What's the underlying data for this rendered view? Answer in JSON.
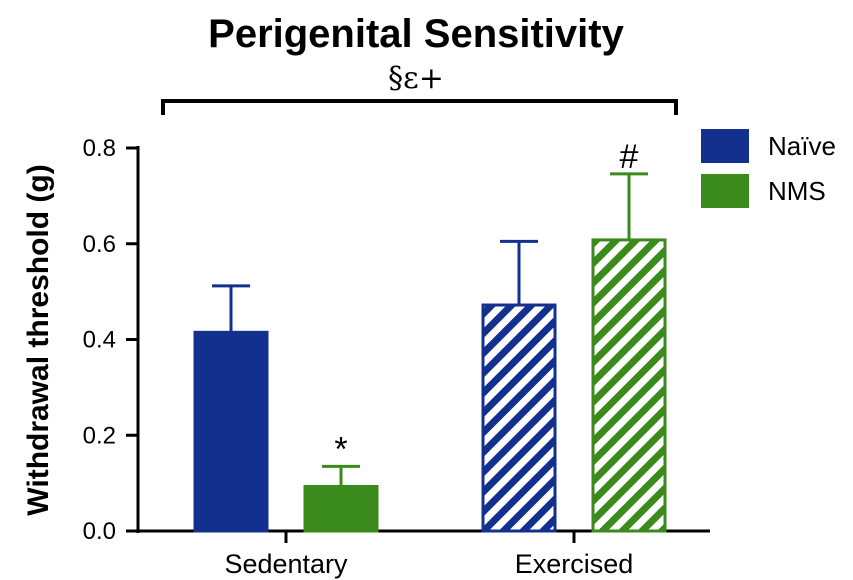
{
  "chart_data": {
    "type": "bar",
    "title": "Perigenital Sensitivity",
    "bracket_annotation": "§ε+",
    "ylabel": "Withdrawal threshold (g)",
    "xlabel": "",
    "ylim": [
      0,
      0.8
    ],
    "yticks": [
      "0.0",
      "0.2",
      "0.4",
      "0.6",
      "0.8"
    ],
    "categories": [
      "Sedentary",
      "Exercised"
    ],
    "legend_position": "top-right",
    "series": [
      {
        "name": "Naïve",
        "color": "#13308f",
        "values": [
          0.415,
          0.472
        ],
        "errors": [
          0.097,
          0.133
        ],
        "hatched": [
          false,
          true
        ],
        "annotations": [
          "",
          ""
        ]
      },
      {
        "name": "NMS",
        "color": "#3b8a1c",
        "values": [
          0.093,
          0.608
        ],
        "errors": [
          0.042,
          0.138
        ],
        "hatched": [
          false,
          true
        ],
        "annotations": [
          "*",
          "#"
        ]
      }
    ]
  }
}
